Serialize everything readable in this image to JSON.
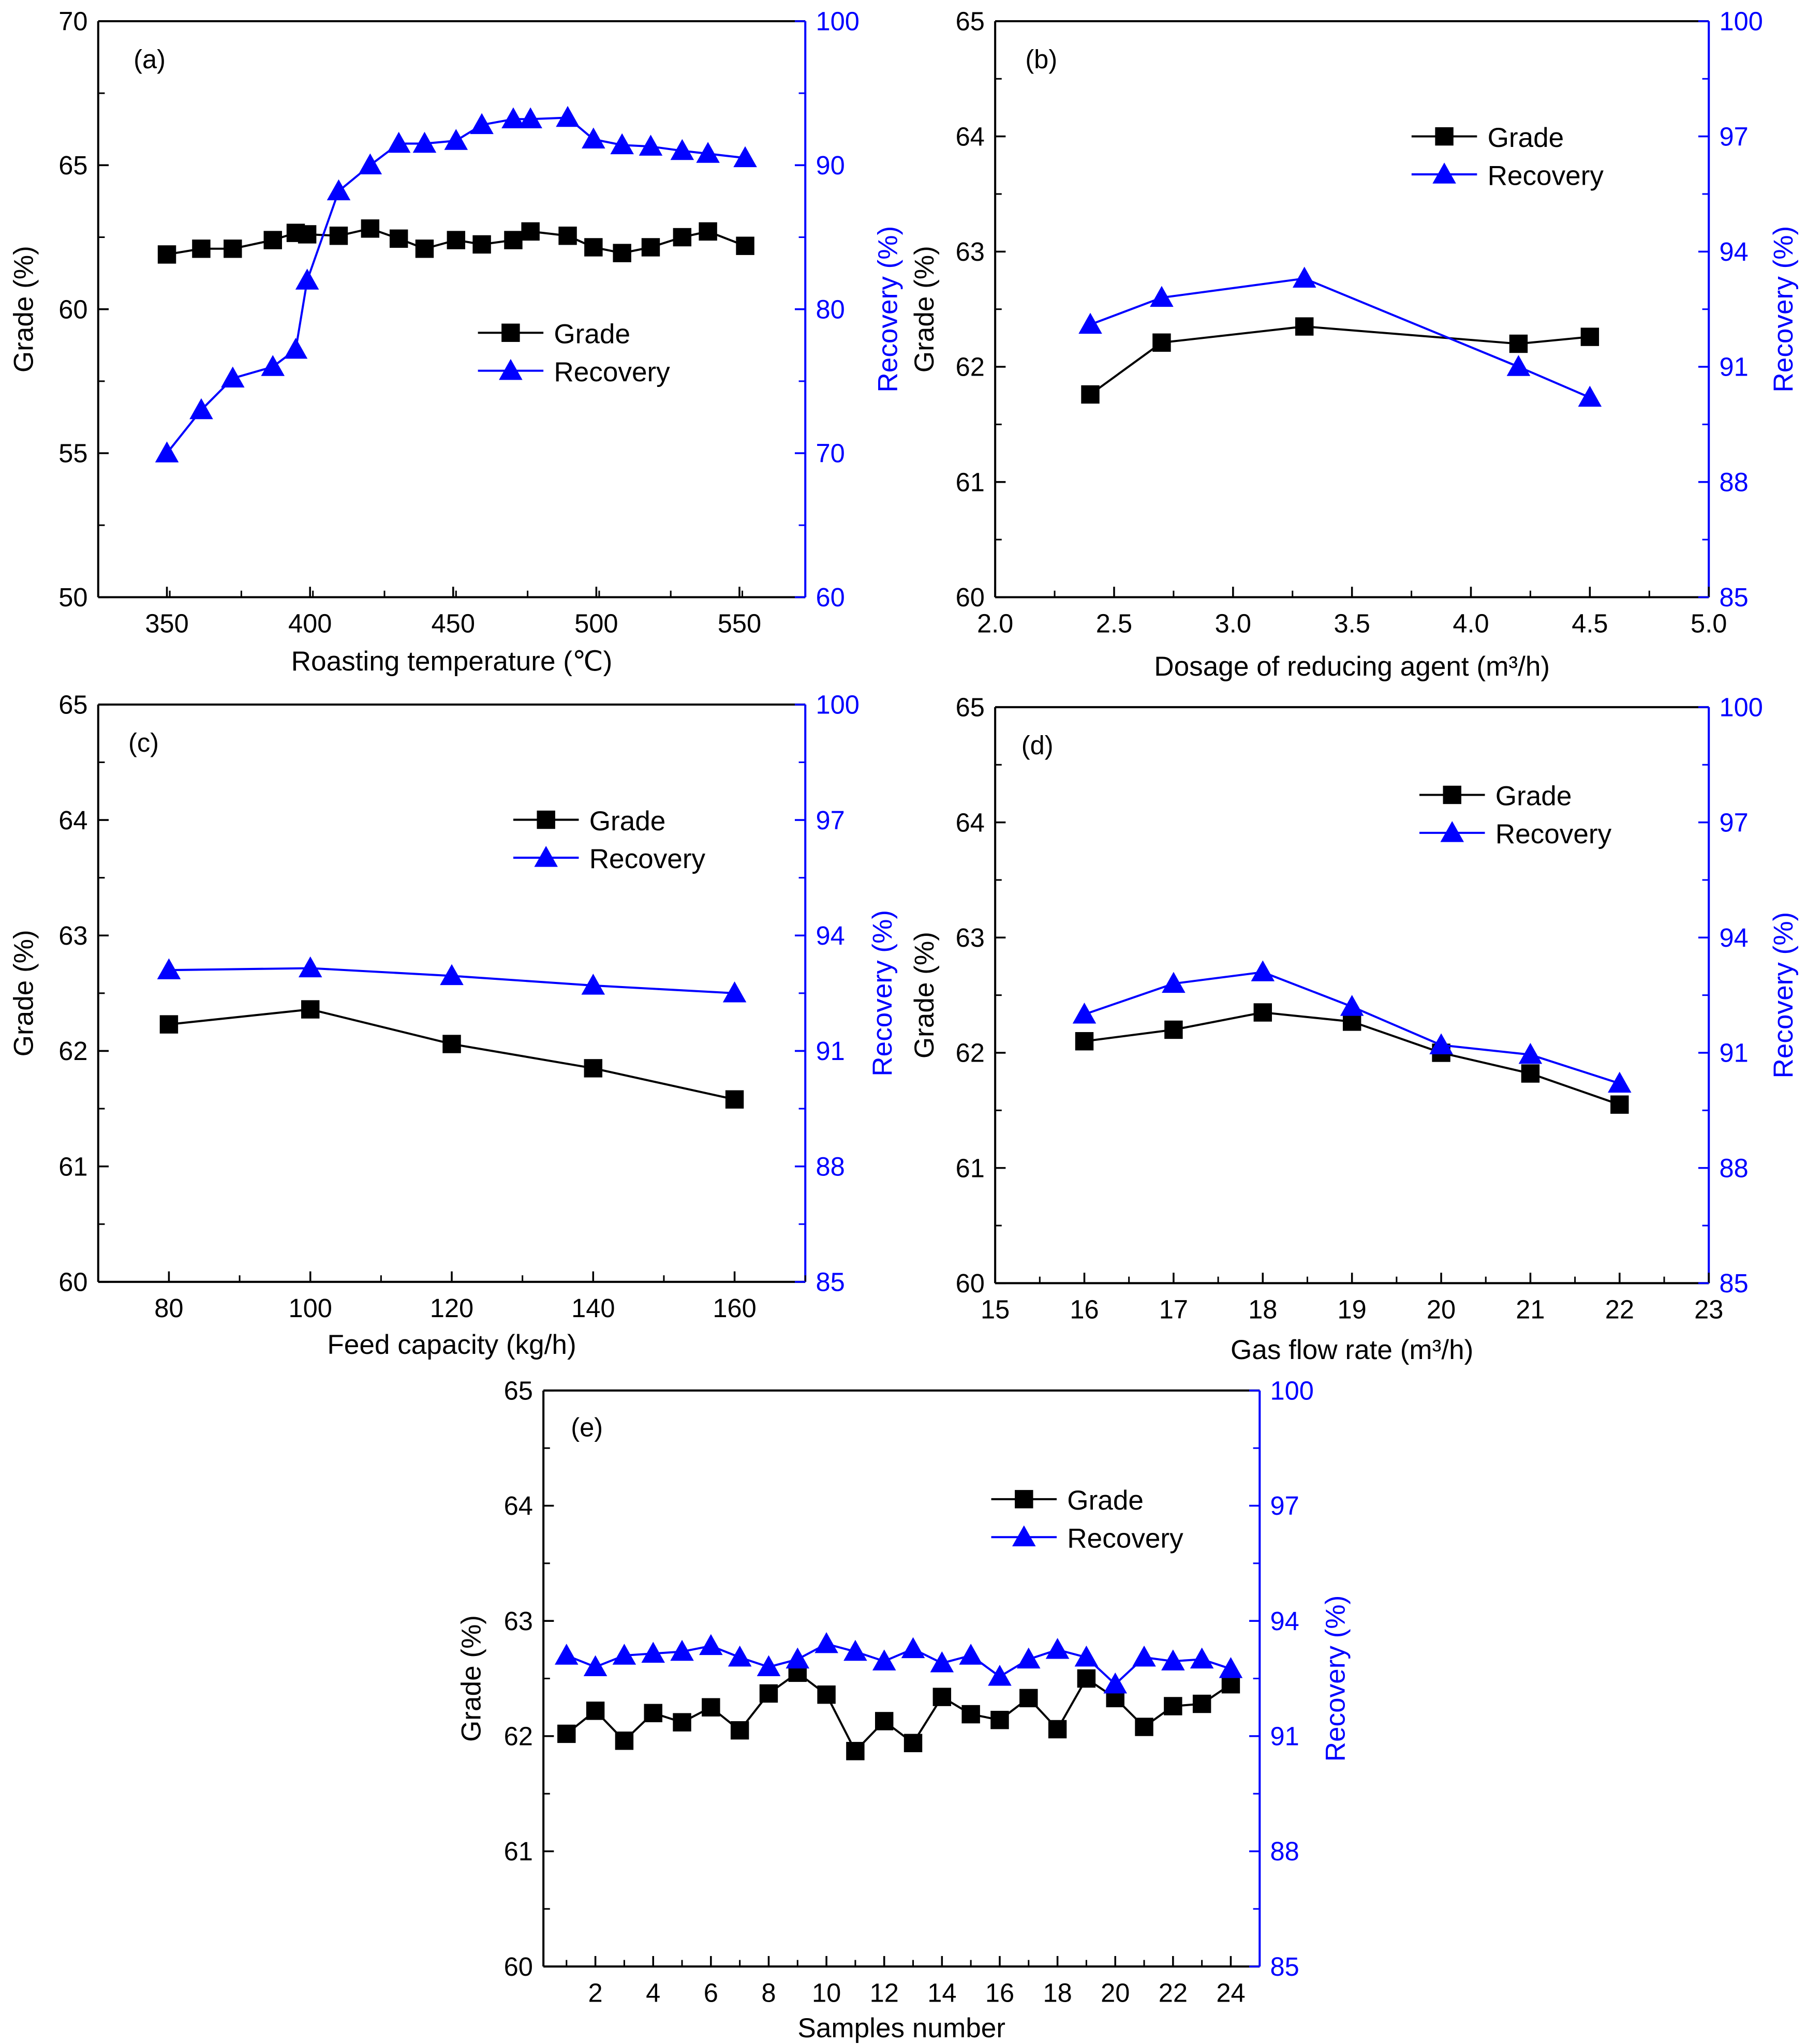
{
  "colors": {
    "grade": "#000000",
    "recovery": "#0000ff"
  },
  "chart_data": [
    {
      "type": "line",
      "panel": "(a)",
      "xlabel": "Roasting temperature (℃)",
      "ylabel_left": "Grade (%)",
      "ylabel_right": "Recovery (%)",
      "xlim": [
        326,
        573
      ],
      "ylim_left": [
        50,
        70
      ],
      "ylim_right": [
        60,
        100
      ],
      "xticks": [
        "350",
        "400",
        "450",
        "500",
        "550"
      ],
      "xminor": 25,
      "yticks_left": [
        "50",
        "55",
        "60",
        "65",
        "70"
      ],
      "yticks_right": [
        "60",
        "70",
        "80",
        "90",
        "100"
      ],
      "legend": {
        "placement": "center-right",
        "entries": [
          "Grade",
          "Recovery"
        ]
      },
      "x": [
        350,
        362,
        373,
        387,
        395,
        399,
        410,
        421,
        431,
        440,
        451,
        460,
        471,
        477,
        490,
        499,
        509,
        519,
        530,
        539,
        552
      ],
      "series": [
        {
          "name": "Grade",
          "axis": "left",
          "marker": "square",
          "values": [
            61.9,
            62.1,
            62.1,
            62.4,
            62.65,
            62.6,
            62.55,
            62.8,
            62.45,
            62.1,
            62.4,
            62.25,
            62.4,
            62.7,
            62.55,
            62.15,
            61.95,
            62.15,
            62.5,
            62.7,
            62.2
          ]
        },
        {
          "name": "Recovery",
          "axis": "right",
          "marker": "triangle",
          "values": [
            70,
            73,
            75.2,
            76,
            77.2,
            82,
            88.2,
            90,
            91.5,
            91.5,
            91.7,
            92.8,
            93.2,
            93.2,
            93.3,
            91.8,
            91.4,
            91.3,
            91,
            90.8,
            90.5
          ]
        }
      ]
    },
    {
      "type": "line",
      "panel": "(b)",
      "xlabel": "Dosage of reducing agent (m³/h)",
      "ylabel_left": "Grade (%)",
      "ylabel_right": "Recovery (%)",
      "xlim": [
        2.0,
        5.0
      ],
      "ylim_left": [
        60,
        65
      ],
      "ylim_right": [
        85,
        100
      ],
      "xticks": [
        "2.0",
        "2.5",
        "3.0",
        "3.5",
        "4.0",
        "4.5",
        "5.0"
      ],
      "xminor": 0.25,
      "yticks_left": [
        "60",
        "61",
        "62",
        "63",
        "64",
        "65"
      ],
      "yticks_right": [
        "85",
        "88",
        "91",
        "94",
        "97",
        "100"
      ],
      "legend": {
        "placement": "top-right",
        "entries": [
          "Grade",
          "Recovery"
        ]
      },
      "x": [
        2.4,
        2.7,
        3.3,
        4.2,
        4.5
      ],
      "series": [
        {
          "name": "Grade",
          "axis": "left",
          "marker": "square",
          "values": [
            61.76,
            62.21,
            62.35,
            62.2,
            62.26
          ]
        },
        {
          "name": "Recovery",
          "axis": "right",
          "marker": "triangle",
          "values": [
            92.1,
            92.8,
            93.3,
            91.0,
            90.2
          ]
        }
      ]
    },
    {
      "type": "line",
      "panel": "(c)",
      "xlabel": "Feed capacity (kg/h)",
      "ylabel_left": "Grade (%)",
      "ylabel_right": "Recovery (%)",
      "xlim": [
        70,
        170
      ],
      "ylim_left": [
        60,
        65
      ],
      "ylim_right": [
        85,
        100
      ],
      "xticks": [
        "80",
        "100",
        "120",
        "140",
        "160"
      ],
      "xminor": 10,
      "yticks_left": [
        "60",
        "61",
        "62",
        "63",
        "64",
        "65"
      ],
      "yticks_right": [
        "85",
        "88",
        "91",
        "94",
        "97",
        "100"
      ],
      "legend": {
        "placement": "top-right",
        "entries": [
          "Grade",
          "Recovery"
        ]
      },
      "x": [
        80,
        100,
        120,
        140,
        160
      ],
      "series": [
        {
          "name": "Grade",
          "axis": "left",
          "marker": "square",
          "values": [
            62.23,
            62.36,
            62.06,
            61.85,
            61.58
          ]
        },
        {
          "name": "Recovery",
          "axis": "right",
          "marker": "triangle",
          "values": [
            93.1,
            93.15,
            92.95,
            92.7,
            92.5
          ]
        }
      ]
    },
    {
      "type": "line",
      "panel": "(d)",
      "xlabel": "Gas flow rate (m³/h)",
      "ylabel_left": "Grade (%)",
      "ylabel_right": "Recovery (%)",
      "xlim": [
        15,
        23
      ],
      "ylim_left": [
        60,
        65
      ],
      "ylim_right": [
        85,
        100
      ],
      "xticks": [
        "15",
        "16",
        "17",
        "18",
        "19",
        "20",
        "21",
        "22",
        "23"
      ],
      "xminor": 0.5,
      "yticks_left": [
        "60",
        "61",
        "62",
        "63",
        "64",
        "65"
      ],
      "yticks_right": [
        "85",
        "88",
        "91",
        "94",
        "97",
        "100"
      ],
      "legend": {
        "placement": "top-right",
        "entries": [
          "Grade",
          "Recovery"
        ]
      },
      "x": [
        16,
        17,
        18,
        19,
        20,
        21,
        22
      ],
      "series": [
        {
          "name": "Grade",
          "axis": "left",
          "marker": "square",
          "values": [
            62.1,
            62.2,
            62.35,
            62.27,
            62.0,
            61.82,
            61.55
          ]
        },
        {
          "name": "Recovery",
          "axis": "right",
          "marker": "triangle",
          "values": [
            92.0,
            92.8,
            93.1,
            92.2,
            91.2,
            90.95,
            90.2
          ]
        }
      ]
    },
    {
      "type": "line",
      "panel": "(e)",
      "xlabel": "Samples number",
      "ylabel_left": "Grade (%)",
      "ylabel_right": "Recovery (%)",
      "xlim": [
        0.2,
        25
      ],
      "ylim_left": [
        60,
        65
      ],
      "ylim_right": [
        85,
        100
      ],
      "xticks": [
        "2",
        "4",
        "6",
        "8",
        "10",
        "12",
        "14",
        "16",
        "18",
        "20",
        "22",
        "24"
      ],
      "xminor": 0,
      "yticks_left": [
        "60",
        "61",
        "62",
        "63",
        "64",
        "65"
      ],
      "yticks_right": [
        "85",
        "88",
        "91",
        "94",
        "97",
        "100"
      ],
      "legend": {
        "placement": "top-right",
        "entries": [
          "Grade",
          "Recovery"
        ]
      },
      "x": [
        1,
        2,
        3,
        4,
        5,
        6,
        7,
        8,
        9,
        10,
        11,
        12,
        13,
        14,
        15,
        16,
        17,
        18,
        19,
        20,
        21,
        22,
        23,
        24
      ],
      "series": [
        {
          "name": "Grade",
          "axis": "left",
          "marker": "square",
          "values": [
            62.02,
            62.22,
            61.96,
            62.2,
            62.12,
            62.25,
            62.05,
            62.37,
            62.55,
            62.36,
            61.87,
            62.13,
            61.94,
            62.34,
            62.19,
            62.14,
            62.33,
            62.06,
            62.5,
            62.33,
            62.08,
            62.26,
            62.28,
            62.45
          ]
        },
        {
          "name": "Recovery",
          "axis": "right",
          "marker": "triangle",
          "values": [
            93.1,
            92.8,
            93.1,
            93.15,
            93.2,
            93.35,
            93.05,
            92.8,
            93.0,
            93.4,
            93.2,
            92.95,
            93.27,
            92.9,
            93.1,
            92.55,
            93.0,
            93.25,
            93.05,
            92.35,
            93.05,
            92.95,
            93.0,
            92.75
          ]
        }
      ]
    }
  ]
}
